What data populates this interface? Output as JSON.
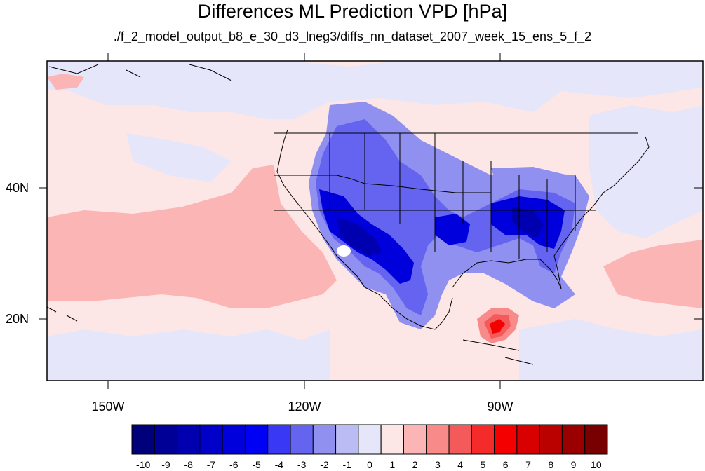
{
  "title": "Differences ML Prediction VPD [hPa]",
  "subtitle": "./f_2_model_output_b8_e_30_d3_lneg3/diffs_nn_dataset_2007_week_15_ens_5_f_2",
  "map": {
    "projection": "cylindrical equidistant",
    "lon_range": [
      -159.5,
      -60.5
    ],
    "lat_range": [
      10.5,
      59.5
    ],
    "lat_ticks": [
      {
        "value": 40,
        "label": "40N"
      },
      {
        "value": 20,
        "label": "20N"
      }
    ],
    "lon_ticks": [
      {
        "value": -150,
        "label": "150W"
      },
      {
        "value": -120,
        "label": "120W"
      },
      {
        "value": -90,
        "label": "90W"
      }
    ],
    "background_color": "#fde6e6",
    "regions": [
      {
        "name": "North Pacific positive band",
        "level": 1
      },
      {
        "name": "Central Pacific positive band",
        "level": 1
      },
      {
        "name": "Western US negative anomaly",
        "level": -5
      },
      {
        "name": "Southwest US negative core",
        "level": -7
      },
      {
        "name": "Mexico negative anomaly",
        "level": -5
      },
      {
        "name": "Southeast US negative core",
        "level": -6
      },
      {
        "name": "Caribbean positive anomaly",
        "level": 6
      }
    ]
  },
  "colorbar": {
    "labels": [
      "-10",
      "-9",
      "-8",
      "-7",
      "-6",
      "-5",
      "-4",
      "-3",
      "-2",
      "-1",
      "0",
      "1",
      "2",
      "3",
      "4",
      "5",
      "6",
      "7",
      "8",
      "9",
      "10"
    ],
    "colors": [
      "#00007a",
      "#000096",
      "#0000b0",
      "#0000c8",
      "#0000dc",
      "#0000f5",
      "#3838f5",
      "#6464f0",
      "#9090f0",
      "#bcbcf5",
      "#e6e6fa",
      "#fde6e6",
      "#fbb5b5",
      "#f88a8a",
      "#f55a5a",
      "#f52a2a",
      "#f50000",
      "#d80000",
      "#bb0000",
      "#9a0000",
      "#780000"
    ]
  }
}
